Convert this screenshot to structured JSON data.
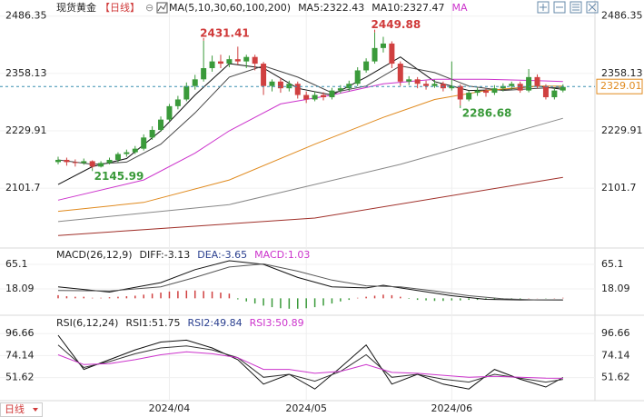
{
  "header": {
    "symbol": "现货黄金",
    "period": "【日线】",
    "toggle": "⊖"
  },
  "footer": {
    "period_button": "日线"
  },
  "chart_data": [
    {
      "type": "candlestick",
      "legend": [
        {
          "text": "MA(5,10,30,60,100,200)",
          "color": "#222222"
        },
        {
          "text": "MA5:2322.43",
          "color": "#222222"
        },
        {
          "text": "MA10:2327.47",
          "color": "#222222"
        },
        {
          "text": "MA",
          "color": "#cc33cc"
        }
      ],
      "ylim": [
        1970,
        2502
      ],
      "yticks": [
        2486.35,
        2358.13,
        2229.91,
        2101.7
      ],
      "up_color": "#3a9a3a",
      "down_color": "#d04040",
      "categories": [
        null,
        null,
        null,
        null,
        null,
        null,
        null,
        null,
        null,
        null,
        null,
        null,
        null,
        "2024/04",
        null,
        null,
        null,
        null,
        null,
        null,
        null,
        null,
        null,
        null,
        null,
        null,
        null,
        null,
        null,
        "2024/05",
        null,
        null,
        null,
        null,
        null,
        null,
        null,
        null,
        null,
        null,
        null,
        null,
        null,
        null,
        null,
        null,
        "2024/06",
        null,
        null,
        null,
        null,
        null,
        null,
        null,
        null,
        null,
        null,
        null,
        null,
        null
      ],
      "ohlc": [
        [
          2160,
          2172,
          2155,
          2165
        ],
        [
          2165,
          2170,
          2152,
          2160
        ],
        [
          2160,
          2166,
          2150,
          2158
        ],
        [
          2158,
          2168,
          2154,
          2162
        ],
        [
          2162,
          2164,
          2145.99,
          2150
        ],
        [
          2150,
          2162,
          2148,
          2158
        ],
        [
          2158,
          2170,
          2155,
          2165
        ],
        [
          2165,
          2182,
          2160,
          2178
        ],
        [
          2178,
          2188,
          2172,
          2182
        ],
        [
          2182,
          2196,
          2178,
          2190
        ],
        [
          2190,
          2222,
          2186,
          2215
        ],
        [
          2215,
          2240,
          2210,
          2232
        ],
        [
          2232,
          2262,
          2228,
          2255
        ],
        [
          2255,
          2290,
          2250,
          2285
        ],
        [
          2285,
          2308,
          2278,
          2300
        ],
        [
          2300,
          2338,
          2296,
          2330
        ],
        [
          2330,
          2355,
          2322,
          2345
        ],
        [
          2345,
          2431.41,
          2340,
          2370
        ],
        [
          2370,
          2398,
          2362,
          2385
        ],
        [
          2385,
          2400,
          2370,
          2380
        ],
        [
          2380,
          2398,
          2372,
          2390
        ],
        [
          2390,
          2418,
          2378,
          2385
        ],
        [
          2385,
          2400,
          2370,
          2395
        ],
        [
          2395,
          2400,
          2365,
          2380
        ],
        [
          2380,
          2384,
          2310,
          2330
        ],
        [
          2330,
          2345,
          2318,
          2340
        ],
        [
          2340,
          2348,
          2315,
          2325
        ],
        [
          2325,
          2342,
          2318,
          2335
        ],
        [
          2335,
          2340,
          2302,
          2310
        ],
        [
          2310,
          2318,
          2292,
          2300
        ],
        [
          2300,
          2318,
          2296,
          2310
        ],
        [
          2310,
          2316,
          2298,
          2305
        ],
        [
          2305,
          2326,
          2300,
          2320
        ],
        [
          2320,
          2332,
          2314,
          2325
        ],
        [
          2325,
          2342,
          2318,
          2335
        ],
        [
          2335,
          2372,
          2330,
          2365
        ],
        [
          2365,
          2392,
          2360,
          2385
        ],
        [
          2385,
          2449.88,
          2380,
          2415
        ],
        [
          2415,
          2440,
          2405,
          2425
        ],
        [
          2425,
          2430,
          2370,
          2380
        ],
        [
          2380,
          2385,
          2330,
          2340
        ],
        [
          2340,
          2352,
          2332,
          2345
        ],
        [
          2345,
          2350,
          2325,
          2335
        ],
        [
          2335,
          2342,
          2322,
          2330
        ],
        [
          2330,
          2344,
          2326,
          2335
        ],
        [
          2335,
          2340,
          2318,
          2325
        ],
        [
          2325,
          2385,
          2320,
          2330
        ],
        [
          2330,
          2334,
          2286.68,
          2300
        ],
        [
          2300,
          2320,
          2296,
          2315
        ],
        [
          2315,
          2326,
          2308,
          2320
        ],
        [
          2320,
          2324,
          2306,
          2315
        ],
        [
          2315,
          2332,
          2310,
          2325
        ],
        [
          2325,
          2336,
          2318,
          2330
        ],
        [
          2330,
          2340,
          2322,
          2335
        ],
        [
          2335,
          2340,
          2315,
          2320
        ],
        [
          2320,
          2368,
          2316,
          2350
        ],
        [
          2350,
          2356,
          2325,
          2330
        ],
        [
          2330,
          2334,
          2300,
          2305
        ],
        [
          2305,
          2326,
          2300,
          2320
        ],
        [
          2320,
          2334,
          2316,
          2328
        ]
      ],
      "lines": [
        {
          "color": "#111111",
          "x": [
            0,
            4,
            8,
            12,
            16,
            20,
            24,
            28,
            32,
            36,
            40,
            44,
            48,
            52,
            56,
            59
          ],
          "values": [
            2110,
            2150,
            2168,
            2230,
            2310,
            2380,
            2370,
            2325,
            2310,
            2350,
            2395,
            2340,
            2320,
            2322,
            2330,
            2322.43
          ]
        },
        {
          "color": "#444444",
          "x": [
            0,
            4,
            8,
            12,
            16,
            20,
            24,
            28,
            32,
            36,
            40,
            44,
            48,
            52,
            56,
            59
          ],
          "values": [
            2165,
            2155,
            2160,
            2200,
            2270,
            2350,
            2375,
            2350,
            2315,
            2330,
            2375,
            2360,
            2330,
            2320,
            2325,
            2327.47
          ]
        },
        {
          "color": "#cc33cc",
          "x": [
            0,
            10,
            16,
            20,
            26,
            32,
            38,
            44,
            50,
            56,
            59
          ],
          "values": [
            2075,
            2120,
            2180,
            2230,
            2290,
            2310,
            2335,
            2345,
            2345,
            2342,
            2340
          ]
        },
        {
          "color": "#e08a1e",
          "x": [
            0,
            10,
            20,
            30,
            38,
            44,
            50,
            56,
            59
          ],
          "values": [
            2050,
            2070,
            2120,
            2200,
            2260,
            2300,
            2320,
            2330,
            2330
          ]
        },
        {
          "color": "#888888",
          "x": [
            0,
            20,
            40,
            59
          ],
          "values": [
            2027,
            2065,
            2155,
            2258
          ]
        },
        {
          "color": "#a0302a",
          "x": [
            0,
            30,
            59
          ],
          "values": [
            1996,
            2035,
            2126
          ]
        }
      ],
      "last_price": 2329.01,
      "annotations": [
        {
          "text": "2431.41",
          "index": 17,
          "position": "above",
          "color": "#d03a3a"
        },
        {
          "text": "2449.88",
          "index": 37,
          "position": "above",
          "color": "#d03a3a"
        },
        {
          "text": "2145.99",
          "index": 4,
          "position": "below",
          "color": "#3a9a3a"
        },
        {
          "text": "2286.68",
          "index": 47,
          "position": "below",
          "color": "#3a9a3a"
        }
      ]
    },
    {
      "type": "macd",
      "legend": [
        {
          "text": "MACD(26,12,9)",
          "color": "#222222"
        },
        {
          "text": "DIFF:-3.13",
          "color": "#222222"
        },
        {
          "text": "DEA:-3.65",
          "color": "#2a3f8f"
        },
        {
          "text": "MACD:1.03",
          "color": "#cc33cc"
        }
      ],
      "ylim": [
        -29,
        79
      ],
      "yticks": [
        65.1,
        18.09
      ],
      "up_color": "#d04040",
      "down_color": "#3a9a3a",
      "values": [
        6,
        4,
        3,
        3,
        1,
        1,
        2,
        3,
        4,
        5,
        7,
        9,
        11,
        13,
        14,
        15,
        15,
        14,
        13,
        11,
        9,
        -2,
        -6,
        -10,
        -14,
        -17,
        -19,
        -20,
        -20,
        -19,
        -17,
        -14,
        -10,
        -6,
        -3,
        1,
        3,
        5,
        7,
        6,
        3,
        -1,
        -3,
        -4,
        -5,
        -5,
        -4,
        -4,
        -3,
        -3,
        -2,
        -2,
        -1,
        -1,
        -1,
        0.5,
        0.3,
        -0.5,
        0.5,
        1.03
      ],
      "lines": [
        {
          "color": "#111111",
          "x": [
            0,
            6,
            12,
            16,
            20,
            24,
            28,
            32,
            36,
            38,
            42,
            46,
            50,
            54,
            59
          ],
          "values": [
            22,
            12,
            30,
            55,
            72,
            65,
            40,
            22,
            20,
            25,
            15,
            5,
            -2,
            -3,
            -3.13
          ]
        },
        {
          "color": "#555555",
          "x": [
            0,
            6,
            12,
            16,
            20,
            24,
            28,
            32,
            36,
            40,
            44,
            48,
            52,
            56,
            59
          ],
          "values": [
            15,
            14,
            22,
            40,
            60,
            66,
            52,
            35,
            24,
            22,
            14,
            5,
            -1,
            -3,
            -3.65
          ]
        }
      ]
    },
    {
      "type": "rsi",
      "legend": [
        {
          "text": "RSI(6,12,24)",
          "color": "#222222"
        },
        {
          "text": "RSI1:51.75",
          "color": "#222222"
        },
        {
          "text": "RSI2:49.84",
          "color": "#2a3f8f"
        },
        {
          "text": "RSI3:50.89",
          "color": "#cc33cc"
        }
      ],
      "ylim": [
        29,
        108
      ],
      "yticks": [
        96.66,
        74.14,
        51.62
      ],
      "lines": [
        {
          "color": "#111111",
          "x": [
            0,
            3,
            6,
            9,
            12,
            15,
            18,
            21,
            24,
            27,
            30,
            33,
            36,
            39,
            42,
            45,
            48,
            51,
            54,
            57,
            59
          ],
          "values": [
            95,
            60,
            70,
            80,
            88,
            90,
            82,
            70,
            45,
            55,
            40,
            62,
            85,
            45,
            55,
            45,
            40,
            60,
            50,
            42,
            51.75
          ]
        },
        {
          "color": "#333333",
          "x": [
            0,
            3,
            6,
            9,
            12,
            15,
            18,
            21,
            24,
            27,
            30,
            33,
            36,
            39,
            42,
            45,
            48,
            51,
            54,
            57,
            59
          ],
          "values": [
            85,
            62,
            68,
            76,
            82,
            84,
            80,
            72,
            52,
            55,
            48,
            58,
            75,
            52,
            55,
            50,
            47,
            55,
            51,
            47,
            49.84
          ]
        },
        {
          "color": "#cc33cc",
          "x": [
            0,
            3,
            6,
            9,
            12,
            15,
            18,
            21,
            24,
            27,
            30,
            33,
            36,
            39,
            42,
            45,
            48,
            51,
            54,
            57,
            59
          ],
          "values": [
            75,
            65,
            66,
            70,
            75,
            78,
            76,
            72,
            60,
            60,
            56,
            58,
            65,
            57,
            56,
            54,
            52,
            53,
            52,
            51,
            50.89
          ]
        }
      ]
    }
  ]
}
